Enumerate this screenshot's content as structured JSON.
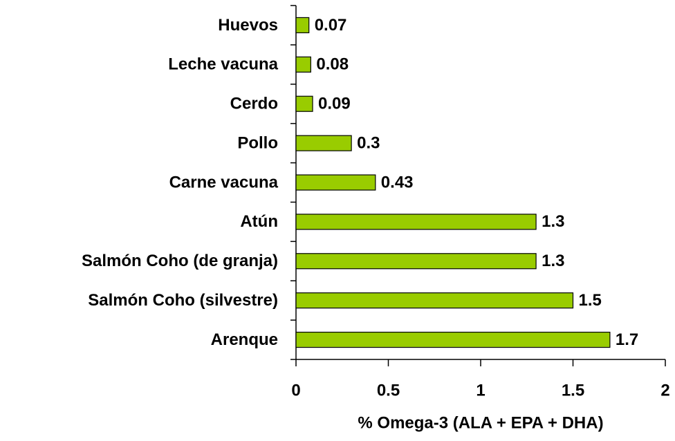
{
  "chart_data": {
    "type": "bar",
    "orientation": "horizontal",
    "categories": [
      "Huevos",
      "Leche vacuna",
      "Cerdo",
      "Pollo",
      "Carne vacuna",
      "Atún",
      "Salmón Coho (de granja)",
      "Salmón Coho (silvestre)",
      "Arenque"
    ],
    "values": [
      0.07,
      0.08,
      0.09,
      0.3,
      0.43,
      1.3,
      1.3,
      1.5,
      1.7
    ],
    "color": "#99cc00",
    "xlabel": "% Omega-3 (ALA + EPA + DHA)",
    "xlim": [
      0,
      2
    ],
    "xticks": [
      0,
      0.5,
      1,
      1.5,
      2
    ]
  }
}
